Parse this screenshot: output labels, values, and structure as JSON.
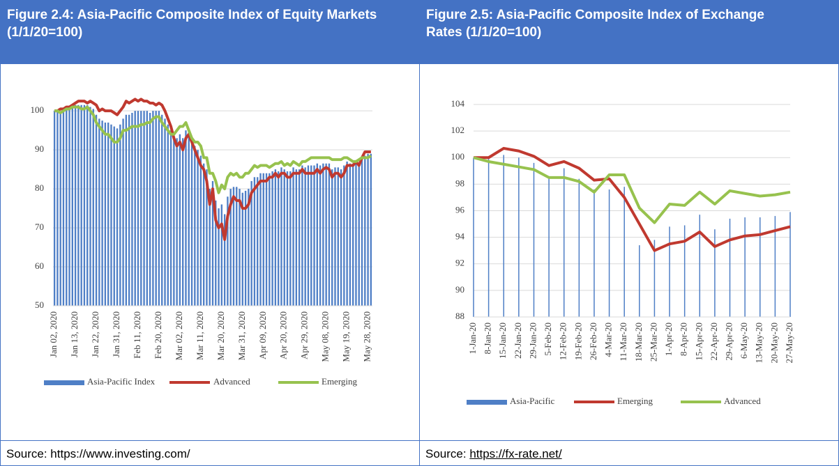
{
  "chart_data": [
    {
      "type": "bar-line",
      "title": "Figure 2.4: Asia-Pacific Composite Index of Equity Markets (1/1/20=100)",
      "categories": [
        "Jan 02, 2020",
        null,
        null,
        null,
        null,
        null,
        null,
        "Jan 13, 2020",
        null,
        null,
        null,
        null,
        null,
        null,
        "Jan 22, 2020",
        null,
        null,
        null,
        null,
        null,
        null,
        "Jan 31, 2020",
        null,
        null,
        null,
        null,
        null,
        null,
        "Feb 11, 2020",
        null,
        null,
        null,
        null,
        null,
        null,
        "Feb 20, 2020",
        null,
        null,
        null,
        null,
        null,
        null,
        "Mar 02, 2020",
        null,
        null,
        null,
        null,
        null,
        null,
        "Mar 11, 2020",
        null,
        null,
        null,
        null,
        null,
        null,
        "Mar 20, 2020",
        null,
        null,
        null,
        null,
        null,
        null,
        "Mar 31, 2020",
        null,
        null,
        null,
        null,
        null,
        null,
        "Apr 09, 2020",
        null,
        null,
        null,
        null,
        null,
        null,
        "Apr 20, 2020",
        null,
        null,
        null,
        null,
        null,
        null,
        "Apr 29, 2020",
        null,
        null,
        null,
        null,
        null,
        null,
        "May 08, 2020",
        null,
        null,
        null,
        null,
        null,
        null,
        "May 19, 2020",
        null,
        null,
        null,
        null,
        null,
        null,
        "May 28, 2020",
        null
      ],
      "series": [
        {
          "name": "Asia-Pacific Index",
          "type": "bar",
          "color": "#4f7fc6",
          "values": [
            100,
            100,
            99.5,
            100,
            100.5,
            100.5,
            101,
            101.5,
            101.5,
            101.5,
            101.5,
            101.5,
            101,
            100.5,
            99,
            98,
            97.5,
            97,
            97,
            96.5,
            96,
            95.5,
            96.5,
            98,
            99,
            99,
            99.5,
            100,
            100,
            100,
            100,
            100,
            99.5,
            100,
            100,
            100,
            99,
            98,
            96.5,
            95,
            93.5,
            93,
            94,
            93,
            95,
            95,
            92.5,
            91,
            90,
            88.5,
            86.5,
            85,
            80,
            82,
            77,
            75,
            76,
            73.5,
            78,
            80,
            80.5,
            80.5,
            80,
            79,
            79.5,
            80,
            82,
            83,
            83,
            84,
            84,
            84,
            84,
            84.5,
            85,
            84.5,
            85.5,
            85,
            84.5,
            84.5,
            85.5,
            85,
            85,
            86,
            85.5,
            86,
            86,
            86,
            86.5,
            86,
            86.5,
            86.5,
            86.5,
            85,
            85.5,
            85.5,
            85,
            86,
            87,
            86.5,
            86.5,
            87,
            86.5,
            88,
            88.5,
            89,
            89
          ]
        },
        {
          "name": "Advanced",
          "type": "line",
          "color": "#c0392f",
          "values": [
            100,
            100,
            100.5,
            100.5,
            101,
            101,
            101.5,
            102,
            102.5,
            102.5,
            102.5,
            102,
            102.5,
            102,
            101.5,
            100,
            100.5,
            100,
            100,
            100,
            99.5,
            99,
            100,
            101,
            102.5,
            102,
            102.5,
            103,
            102.5,
            103,
            102.5,
            102.5,
            102,
            102,
            101.5,
            102,
            101.5,
            100,
            98,
            96,
            93,
            91,
            92,
            90,
            93,
            94,
            92,
            90,
            88,
            86,
            85,
            82,
            76,
            80,
            72,
            70,
            71,
            67,
            73,
            76,
            78,
            77,
            77,
            75,
            75,
            76,
            79,
            80,
            81,
            82,
            82,
            82,
            83,
            83,
            84,
            83,
            84,
            84,
            83,
            83,
            84,
            84,
            84,
            85,
            84,
            84,
            84,
            84,
            85,
            84,
            85,
            85.5,
            85,
            83,
            84,
            84,
            83,
            84,
            86,
            86,
            86,
            87,
            86,
            88,
            89.5,
            89.5,
            89.5
          ]
        },
        {
          "name": "Emerging",
          "type": "line",
          "color": "#97c24e",
          "values": [
            100,
            100,
            99.5,
            100,
            100.5,
            100.5,
            101,
            101,
            101,
            100.5,
            100.5,
            101,
            100,
            99,
            97,
            96,
            95,
            94,
            94,
            93,
            92,
            92,
            93,
            95,
            95,
            95.5,
            96,
            96,
            96,
            96.5,
            96.5,
            97,
            97,
            98,
            98.5,
            98.5,
            97,
            96,
            95,
            94,
            94,
            95,
            96,
            96,
            97,
            95,
            93,
            92,
            92,
            91,
            88,
            88,
            84,
            84,
            82,
            79,
            81,
            80,
            83,
            84,
            83.5,
            84,
            83,
            83,
            84,
            84,
            85,
            86,
            85.5,
            86,
            86,
            86,
            85.5,
            86,
            86.5,
            86.5,
            87,
            86,
            86.5,
            86,
            87,
            86.5,
            86,
            87,
            87,
            87.5,
            88,
            88,
            88,
            88,
            88,
            88,
            88,
            87.5,
            87.5,
            87.5,
            87.5,
            88,
            88,
            87.5,
            87,
            87,
            87.5,
            88,
            88,
            88,
            88.5
          ]
        }
      ],
      "ylim": [
        50,
        107
      ],
      "yticks": [
        50,
        60,
        70,
        80,
        90,
        100
      ],
      "grid": true
    },
    {
      "type": "bar-line",
      "title": "Figure 2.5: Asia-Pacific Composite Index of Exchange Rates (1/1/20=100)",
      "categories": [
        "1-Jan-20",
        "8-Jan-20",
        "15-Jan-20",
        "22-Jan-20",
        "29-Jan-20",
        "5-Feb-20",
        "12-Feb-20",
        "19-Feb-20",
        "26-Feb-20",
        "4-Mar-20",
        "11-Mar-20",
        "18-Mar-20",
        "25-Mar-20",
        "1-Apr-20",
        "8-Apr-20",
        "15-Apr-20",
        "22-Apr-20",
        "29-Apr-20",
        "6-May-20",
        "13-May-20",
        "20-May-20",
        "27-May-20"
      ],
      "series": [
        {
          "name": "Asia-Pacific",
          "type": "bar",
          "color": "#4f7fc6",
          "values": [
            100,
            99.9,
            100.2,
            100,
            99.6,
            98.6,
            99.2,
            98.4,
            97.6,
            97.6,
            97.8,
            93.4,
            93.8,
            94.8,
            94.9,
            95.7,
            94.6,
            95.4,
            95.5,
            95.5,
            95.6,
            95.9
          ]
        },
        {
          "name": "Emerging",
          "type": "line",
          "color": "#c0392f",
          "values": [
            100,
            100,
            100.7,
            100.5,
            100.1,
            99.4,
            99.7,
            99.2,
            98.3,
            98.4,
            97,
            95,
            93,
            93.5,
            93.7,
            94.4,
            93.3,
            93.8,
            94.1,
            94.2,
            94.5,
            94.8
          ]
        },
        {
          "name": "Advanced",
          "type": "line",
          "color": "#97c24e",
          "values": [
            100,
            99.7,
            99.5,
            99.3,
            99.1,
            98.5,
            98.5,
            98.2,
            97.4,
            98.7,
            98.7,
            96.2,
            95.1,
            96.5,
            96.4,
            97.4,
            96.5,
            97.5,
            97.3,
            97.1,
            97.2,
            97.4
          ]
        }
      ],
      "ylim": [
        88,
        104
      ],
      "yticks": [
        88,
        90,
        92,
        94,
        96,
        98,
        100,
        102,
        104
      ],
      "grid": true
    }
  ],
  "sources": [
    {
      "text": "Source: https://www.investing.com/"
    },
    {
      "prefix": "Source:",
      "link": "https://fx-rate.net/"
    }
  ]
}
